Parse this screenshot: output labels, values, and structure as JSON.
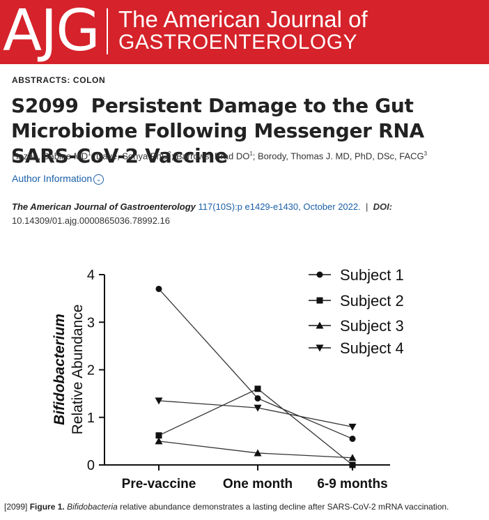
{
  "banner": {
    "logo_letters": "AJG",
    "line1": "The American Journal of",
    "line2": "GASTROENTEROLOGY"
  },
  "section_label": "ABSTRACTS: COLON",
  "article": {
    "number": "S2099",
    "title": "Persistent Damage to the Gut Microbiome Following Messenger RNA SARS-CoV-2 Vaccine",
    "authors": [
      {
        "name": "Hazan, Sabine MD",
        "sup": "1"
      },
      {
        "name": "Dave, Sonya PhD",
        "sup": "2"
      },
      {
        "name": "Barrows, Brad DO",
        "sup": "1"
      },
      {
        "name": "Borody, Thomas J. MD, PhD, DSc, FACG",
        "sup": "3"
      }
    ],
    "author_info_link": "Author Information",
    "journal": "The American Journal of Gastroenterology",
    "volume_pages": "117(10S):p e1429-e1430, October 2022.",
    "doi_label": "DOI:",
    "doi": "10.14309/01.ajg.0000865036.78992.16"
  },
  "chart_data": {
    "type": "line",
    "categories": [
      "Pre-vaccine",
      "One month",
      "6-9 months"
    ],
    "ylabel_line1": "Bifidobacterium",
    "ylabel_line2": "Relative Abundance",
    "ylim": [
      0,
      4
    ],
    "yticks": [
      "0",
      "1",
      "2",
      "3",
      "4"
    ],
    "legend_position": "top-right",
    "series": [
      {
        "name": "Subject 1",
        "marker": "circle",
        "values": [
          3.7,
          1.4,
          0.55
        ]
      },
      {
        "name": "Subject 2",
        "marker": "square",
        "values": [
          0.62,
          1.6,
          0.0
        ]
      },
      {
        "name": "Subject 3",
        "marker": "triangle-up",
        "values": [
          0.5,
          0.25,
          0.15
        ]
      },
      {
        "name": "Subject 4",
        "marker": "triangle-down",
        "values": [
          1.35,
          1.2,
          0.8
        ]
      }
    ]
  },
  "caption": {
    "ref": "[2099]",
    "figure_label": "Figure 1.",
    "italic_term": "Bifidobacteria",
    "text": "relative abundance demonstrates a lasting decline after SARS-CoV-2 mRNA vaccination."
  }
}
